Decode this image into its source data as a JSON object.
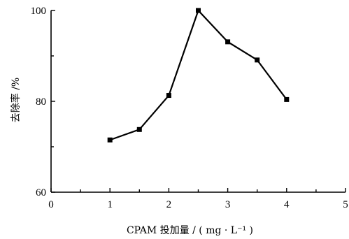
{
  "chart_data": {
    "type": "line",
    "xlabel": "CPAM 投加量 / ( mg · L⁻¹ )",
    "ylabel": "去除率 /%",
    "xlim": [
      0,
      5
    ],
    "ylim": [
      60,
      100
    ],
    "x_ticks": [
      0,
      1,
      2,
      3,
      4,
      5
    ],
    "y_ticks": [
      60,
      80,
      100
    ],
    "x_tick_labels": [
      "0",
      "1",
      "2",
      "3",
      "4",
      "5"
    ],
    "y_tick_labels": [
      "60",
      "80",
      "100"
    ],
    "grid": false,
    "marker": "square",
    "color": "#000000",
    "series": [
      {
        "x": [
          1,
          1.5,
          2,
          2.5,
          3,
          3.5,
          4
        ],
        "y": [
          71.5,
          73.8,
          81.3,
          100,
          93.1,
          89.1,
          80.4
        ]
      }
    ]
  }
}
